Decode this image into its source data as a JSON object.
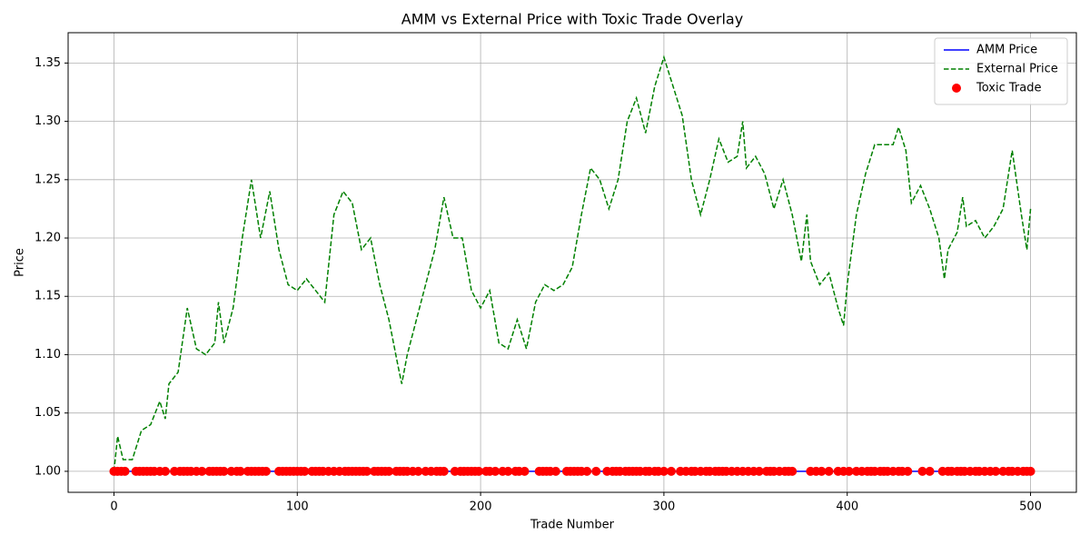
{
  "chart_data": {
    "type": "line",
    "title": "AMM vs External Price with Toxic Trade Overlay",
    "xlabel": "Trade Number",
    "ylabel": "Price",
    "xlim": [
      -25,
      525
    ],
    "ylim": [
      0.982,
      1.376
    ],
    "xticks": [
      0,
      100,
      200,
      300,
      400,
      500
    ],
    "yticks": [
      {
        "value": 1.0,
        "label": "1.00"
      },
      1.05,
      {
        "value": 1.1,
        "label": "1.10"
      },
      1.15,
      {
        "value": 1.2,
        "label": "1.20"
      },
      1.25,
      {
        "value": 1.3,
        "label": "1.30"
      },
      1.35
    ],
    "grid": true,
    "legend": "upper right",
    "series": [
      {
        "name": "AMM Price",
        "type": "line",
        "linestyle": "solid",
        "color": "#0000ff",
        "x": [
          0,
          500
        ],
        "values": [
          1.0,
          1.0
        ]
      },
      {
        "name": "External Price",
        "type": "line",
        "linestyle": "dashed",
        "color": "#008000",
        "x": [
          0,
          2,
          5,
          10,
          15,
          20,
          25,
          28,
          30,
          35,
          40,
          45,
          50,
          55,
          57,
          60,
          65,
          70,
          75,
          80,
          85,
          90,
          95,
          100,
          105,
          110,
          115,
          120,
          125,
          130,
          135,
          140,
          145,
          150,
          155,
          157,
          160,
          165,
          170,
          175,
          180,
          185,
          190,
          195,
          200,
          205,
          210,
          215,
          220,
          225,
          230,
          235,
          240,
          245,
          250,
          255,
          260,
          265,
          270,
          275,
          280,
          285,
          290,
          295,
          300,
          305,
          310,
          315,
          320,
          325,
          330,
          335,
          340,
          343,
          345,
          350,
          355,
          360,
          365,
          370,
          375,
          378,
          380,
          385,
          390,
          395,
          398,
          400,
          405,
          410,
          415,
          420,
          425,
          428,
          432,
          435,
          440,
          445,
          450,
          453,
          455,
          460,
          463,
          465,
          470,
          475,
          480,
          485,
          490,
          495,
          498,
          500
        ],
        "values": [
          1.0,
          1.03,
          1.01,
          1.01,
          1.035,
          1.04,
          1.06,
          1.045,
          1.075,
          1.085,
          1.14,
          1.105,
          1.1,
          1.11,
          1.145,
          1.11,
          1.14,
          1.2,
          1.25,
          1.2,
          1.24,
          1.19,
          1.16,
          1.155,
          1.165,
          1.155,
          1.145,
          1.22,
          1.24,
          1.23,
          1.19,
          1.2,
          1.16,
          1.13,
          1.09,
          1.075,
          1.1,
          1.13,
          1.16,
          1.19,
          1.235,
          1.2,
          1.2,
          1.155,
          1.14,
          1.155,
          1.11,
          1.105,
          1.13,
          1.105,
          1.145,
          1.16,
          1.155,
          1.16,
          1.175,
          1.22,
          1.26,
          1.25,
          1.225,
          1.25,
          1.3,
          1.32,
          1.29,
          1.33,
          1.355,
          1.33,
          1.305,
          1.25,
          1.22,
          1.25,
          1.285,
          1.265,
          1.27,
          1.3,
          1.26,
          1.27,
          1.255,
          1.225,
          1.25,
          1.22,
          1.18,
          1.22,
          1.18,
          1.16,
          1.17,
          1.14,
          1.125,
          1.16,
          1.22,
          1.255,
          1.28,
          1.28,
          1.28,
          1.295,
          1.275,
          1.23,
          1.245,
          1.225,
          1.2,
          1.165,
          1.19,
          1.205,
          1.235,
          1.21,
          1.215,
          1.2,
          1.21,
          1.225,
          1.275,
          1.22,
          1.19,
          1.225
        ]
      },
      {
        "name": "Toxic Trade",
        "type": "scatter",
        "color": "#ff0000",
        "x": [
          0,
          2,
          4,
          6,
          12,
          14,
          16,
          18,
          20,
          22,
          25,
          28,
          33,
          36,
          38,
          40,
          42,
          45,
          48,
          52,
          54,
          56,
          58,
          60,
          64,
          67,
          69,
          73,
          75,
          77,
          79,
          81,
          83,
          90,
          92,
          94,
          96,
          98,
          100,
          102,
          104,
          108,
          110,
          112,
          114,
          117,
          120,
          123,
          126,
          128,
          130,
          132,
          134,
          136,
          138,
          142,
          144,
          146,
          148,
          150,
          154,
          156,
          158,
          160,
          163,
          166,
          170,
          173,
          176,
          178,
          180,
          186,
          189,
          191,
          193,
          195,
          197,
          199,
          203,
          205,
          208,
          212,
          215,
          219,
          221,
          224,
          232,
          234,
          236,
          238,
          241,
          247,
          249,
          251,
          253,
          255,
          258,
          263,
          269,
          272,
          274,
          276,
          279,
          281,
          283,
          285,
          287,
          290,
          292,
          295,
          297,
          300,
          304,
          309,
          312,
          315,
          317,
          320,
          323,
          325,
          328,
          330,
          332,
          334,
          337,
          340,
          343,
          346,
          349,
          352,
          356,
          358,
          360,
          363,
          366,
          368,
          370,
          380,
          383,
          386,
          390,
          395,
          398,
          401,
          405,
          408,
          411,
          413,
          415,
          418,
          420,
          422,
          425,
          428,
          430,
          433,
          441,
          445,
          452,
          455,
          457,
          460,
          462,
          464,
          467,
          470,
          472,
          475,
          478,
          481,
          485,
          488,
          490,
          493,
          496,
          498,
          500
        ],
        "values": [
          1,
          1,
          1,
          1,
          1,
          1,
          1,
          1,
          1,
          1,
          1,
          1,
          1,
          1,
          1,
          1,
          1,
          1,
          1,
          1,
          1,
          1,
          1,
          1,
          1,
          1,
          1,
          1,
          1,
          1,
          1,
          1,
          1,
          1,
          1,
          1,
          1,
          1,
          1,
          1,
          1,
          1,
          1,
          1,
          1,
          1,
          1,
          1,
          1,
          1,
          1,
          1,
          1,
          1,
          1,
          1,
          1,
          1,
          1,
          1,
          1,
          1,
          1,
          1,
          1,
          1,
          1,
          1,
          1,
          1,
          1,
          1,
          1,
          1,
          1,
          1,
          1,
          1,
          1,
          1,
          1,
          1,
          1,
          1,
          1,
          1,
          1,
          1,
          1,
          1,
          1,
          1,
          1,
          1,
          1,
          1,
          1,
          1,
          1,
          1,
          1,
          1,
          1,
          1,
          1,
          1,
          1,
          1,
          1,
          1,
          1,
          1,
          1,
          1,
          1,
          1,
          1,
          1,
          1,
          1,
          1,
          1,
          1,
          1,
          1,
          1,
          1,
          1,
          1,
          1,
          1,
          1,
          1,
          1,
          1,
          1,
          1,
          1,
          1,
          1,
          1,
          1,
          1,
          1,
          1,
          1,
          1,
          1,
          1,
          1,
          1,
          1,
          1,
          1,
          1,
          1,
          1,
          1,
          1,
          1,
          1,
          1,
          1,
          1,
          1,
          1,
          1,
          1,
          1,
          1,
          1,
          1,
          1,
          1,
          1,
          1,
          1
        ]
      }
    ]
  }
}
